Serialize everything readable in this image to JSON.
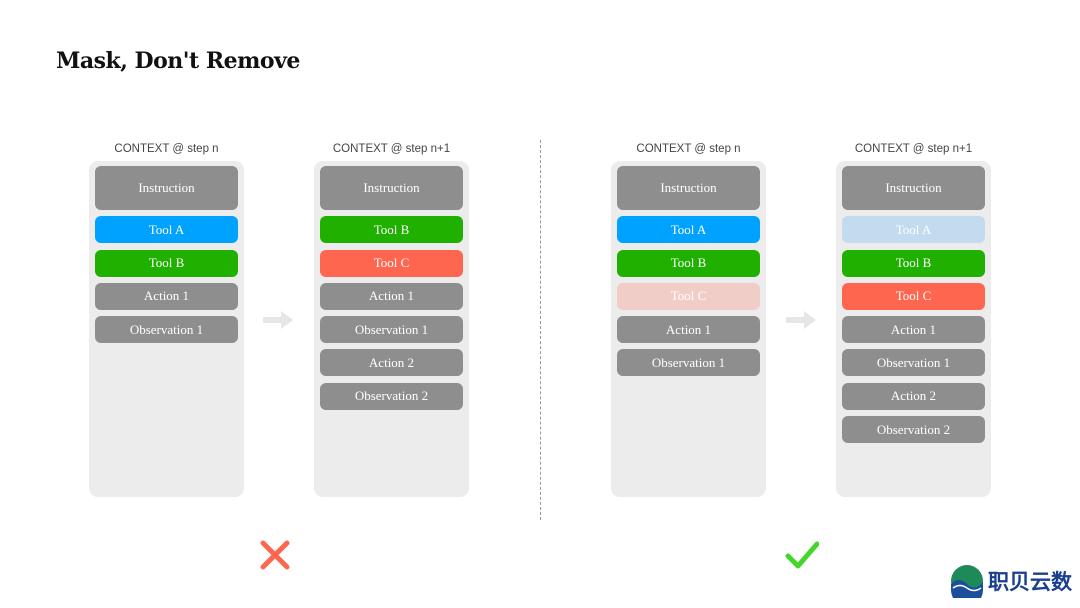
{
  "title": "Mask, Don't Remove",
  "colors": {
    "neutral": "#8e8e8e",
    "tool_a": "#00a2ff",
    "tool_b": "#1fb000",
    "tool_c": "#ff6650",
    "tool_a_masked": "#c2dbef",
    "tool_c_masked": "#f1cdc7",
    "panel": "#ececec"
  },
  "columns": [
    {
      "label": "CONTEXT @ step n",
      "items": [
        {
          "text": "Instruction",
          "kind": "neutral"
        },
        {
          "text": "Tool A",
          "kind": "tool_a"
        },
        {
          "text": "Tool B",
          "kind": "tool_b"
        },
        {
          "text": "Action 1",
          "kind": "neutral"
        },
        {
          "text": "Observation 1",
          "kind": "neutral"
        }
      ]
    },
    {
      "label": "CONTEXT @ step n+1",
      "items": [
        {
          "text": "Instruction",
          "kind": "neutral"
        },
        {
          "text": "Tool B",
          "kind": "tool_b"
        },
        {
          "text": "Tool C",
          "kind": "tool_c"
        },
        {
          "text": "Action 1",
          "kind": "neutral"
        },
        {
          "text": "Observation 1",
          "kind": "neutral"
        },
        {
          "text": "Action 2",
          "kind": "neutral"
        },
        {
          "text": "Observation 2",
          "kind": "neutral"
        }
      ]
    },
    {
      "label": "CONTEXT @ step n",
      "items": [
        {
          "text": "Instruction",
          "kind": "neutral"
        },
        {
          "text": "Tool A",
          "kind": "tool_a"
        },
        {
          "text": "Tool B",
          "kind": "tool_b"
        },
        {
          "text": "Tool C",
          "kind": "tool_c_masked"
        },
        {
          "text": "Action 1",
          "kind": "neutral"
        },
        {
          "text": "Observation 1",
          "kind": "neutral"
        }
      ]
    },
    {
      "label": "CONTEXT @ step n+1",
      "items": [
        {
          "text": "Instruction",
          "kind": "neutral"
        },
        {
          "text": "Tool A",
          "kind": "tool_a_masked"
        },
        {
          "text": "Tool B",
          "kind": "tool_b"
        },
        {
          "text": "Tool C",
          "kind": "tool_c"
        },
        {
          "text": "Action 1",
          "kind": "neutral"
        },
        {
          "text": "Observation 1",
          "kind": "neutral"
        },
        {
          "text": "Action 2",
          "kind": "neutral"
        },
        {
          "text": "Observation 2",
          "kind": "neutral"
        }
      ]
    }
  ],
  "verdicts": {
    "left": "cross-icon",
    "right": "check-icon"
  },
  "logo": {
    "text": "职贝云数"
  }
}
